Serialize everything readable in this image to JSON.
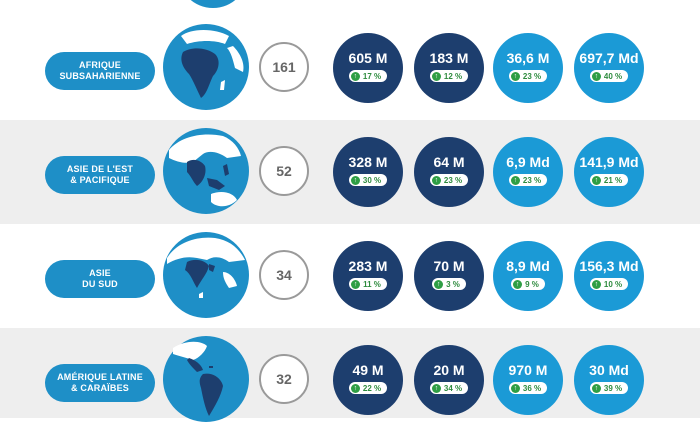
{
  "rows": [
    {
      "region": "AFRIQUE\nSUBSAHARIENNE",
      "count": "161",
      "metrics": [
        {
          "value": "605 M",
          "change": "17 %"
        },
        {
          "value": "183 M",
          "change": "12 %"
        },
        {
          "value": "36,6 M",
          "change": "23 %"
        },
        {
          "value": "697,7 Md",
          "change": "40 %"
        }
      ]
    },
    {
      "region": "ASIE DE L'EST\n& PACIFIQUE",
      "count": "52",
      "metrics": [
        {
          "value": "328 M",
          "change": "30 %"
        },
        {
          "value": "64 M",
          "change": "23 %"
        },
        {
          "value": "6,9 Md",
          "change": "23 %"
        },
        {
          "value": "141,9 Md",
          "change": "21 %"
        }
      ]
    },
    {
      "region": "ASIE\nDU SUD",
      "count": "34",
      "metrics": [
        {
          "value": "283 M",
          "change": "11 %"
        },
        {
          "value": "70 M",
          "change": "3 %"
        },
        {
          "value": "8,9 Md",
          "change": "9 %"
        },
        {
          "value": "156,3 Md",
          "change": "10 %"
        }
      ]
    },
    {
      "region": "AMÉRIQUE LATINE\n& CARAÏBES",
      "count": "32",
      "metrics": [
        {
          "value": "49 M",
          "change": "22 %"
        },
        {
          "value": "20 M",
          "change": "34 %"
        },
        {
          "value": "970 M",
          "change": "36 %"
        },
        {
          "value": "30 Md",
          "change": "39 %"
        }
      ]
    }
  ],
  "icons": {
    "globe": "globe-icon",
    "arrow": "arrow-up-icon"
  },
  "colors": {
    "dark_circle": "#1d3e6e",
    "light_circle": "#1b9ad6",
    "region_pill": "#1e8fc7",
    "increase": "#2e9e44"
  }
}
